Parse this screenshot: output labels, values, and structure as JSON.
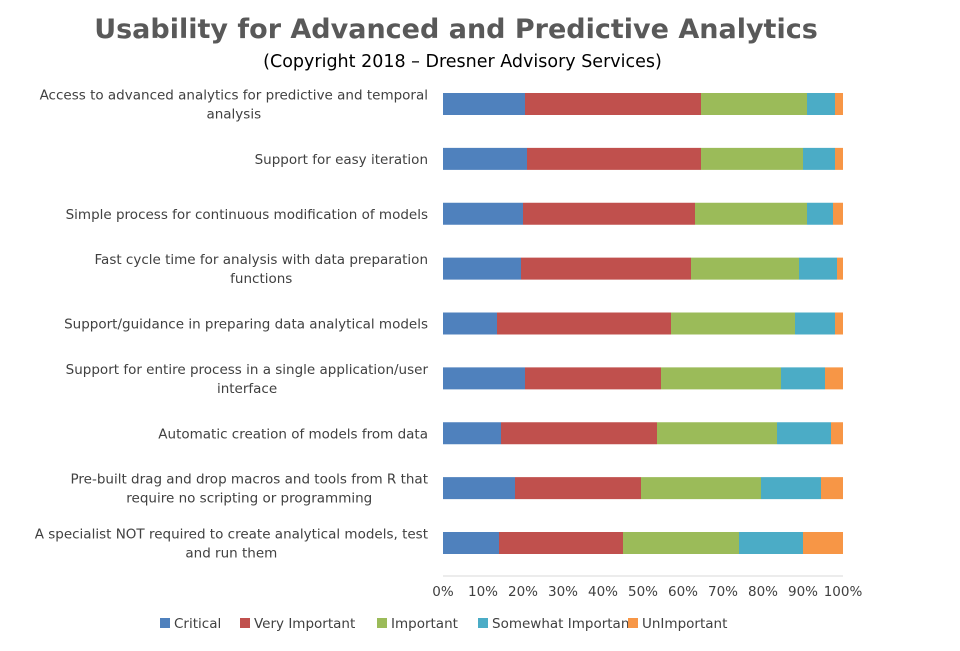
{
  "chart_data": {
    "type": "bar",
    "orientation": "horizontal",
    "stacked": true,
    "normalized": true,
    "title": "Usability for Advanced and Predictive Analytics",
    "subtitle": "(Copyright 2018 – Dresner Advisory Services)",
    "categories": [
      [
        "Access to advanced analytics for predictive and temporal",
        "analysis"
      ],
      [
        "Support for easy iteration"
      ],
      [
        "Simple process for continuous modification of models"
      ],
      [
        "Fast cycle time for analysis with data preparation",
        "functions"
      ],
      [
        "Support/guidance in preparing data analytical models"
      ],
      [
        "Support for entire process in a single application/user",
        "interface"
      ],
      [
        "Automatic creation of models from data"
      ],
      [
        "Pre-built drag and drop macros and tools from R that",
        "require no scripting or programming"
      ],
      [
        "A specialist NOT required to create analytical models, test",
        "and run them"
      ]
    ],
    "series": [
      {
        "name": "Critical",
        "color": "#4F81BD",
        "values": [
          20.5,
          21,
          20,
          19.5,
          13.5,
          20.5,
          14.5,
          18,
          14
        ]
      },
      {
        "name": "Very Important",
        "color": "#C0504D",
        "values": [
          44,
          43.5,
          43,
          42.5,
          43.5,
          34,
          39,
          31.5,
          31
        ]
      },
      {
        "name": "Important",
        "color": "#9BBB59",
        "values": [
          26.5,
          25.5,
          28,
          27,
          31,
          30,
          30,
          30,
          29
        ]
      },
      {
        "name": "Somewhat Important",
        "color": "#4BACC6",
        "values": [
          7,
          8,
          6.5,
          9.5,
          10,
          11,
          13.5,
          15,
          16
        ]
      },
      {
        "name": "UnImportant",
        "color": "#F79646",
        "values": [
          2,
          2,
          2.5,
          1.5,
          2,
          4.5,
          3,
          5.5,
          10
        ]
      }
    ],
    "xlim": [
      0,
      100
    ],
    "xticks": [
      "0%",
      "10%",
      "20%",
      "30%",
      "40%",
      "50%",
      "60%",
      "70%",
      "80%",
      "90%",
      "100%"
    ],
    "grid": false,
    "legend_position": "bottom"
  }
}
